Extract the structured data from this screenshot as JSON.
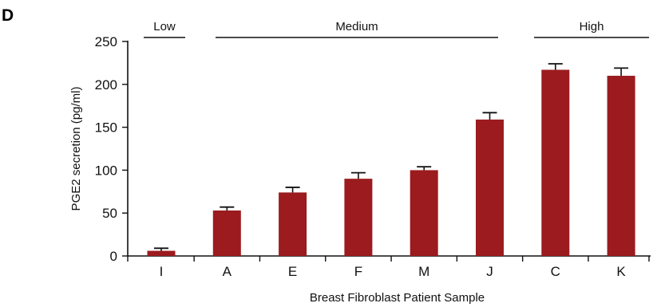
{
  "panel_label": "D",
  "colors": {
    "bar": "#9b1b1e",
    "axis": "#111111",
    "error_bar": "#111111"
  },
  "chart_data": {
    "type": "bar",
    "title": "",
    "xlabel": "Breast Fibroblast Patient Sample",
    "ylabel": "PGE2 secretion (pg/ml)",
    "ylim": [
      0,
      250
    ],
    "yticks": [
      0,
      50,
      100,
      150,
      200,
      250
    ],
    "categories": [
      "I",
      "A",
      "E",
      "F",
      "M",
      "J",
      "C",
      "K"
    ],
    "values": [
      6,
      53,
      74,
      90,
      100,
      159,
      217,
      210
    ],
    "error": [
      3,
      4,
      6,
      7,
      4,
      8,
      7,
      9
    ],
    "groups": [
      {
        "label": "Low",
        "categories": [
          "I"
        ]
      },
      {
        "label": "Medium",
        "categories": [
          "A",
          "E",
          "F",
          "M",
          "J"
        ]
      },
      {
        "label": "High",
        "categories": [
          "C",
          "K"
        ]
      }
    ],
    "grid": false,
    "legend": "none"
  }
}
